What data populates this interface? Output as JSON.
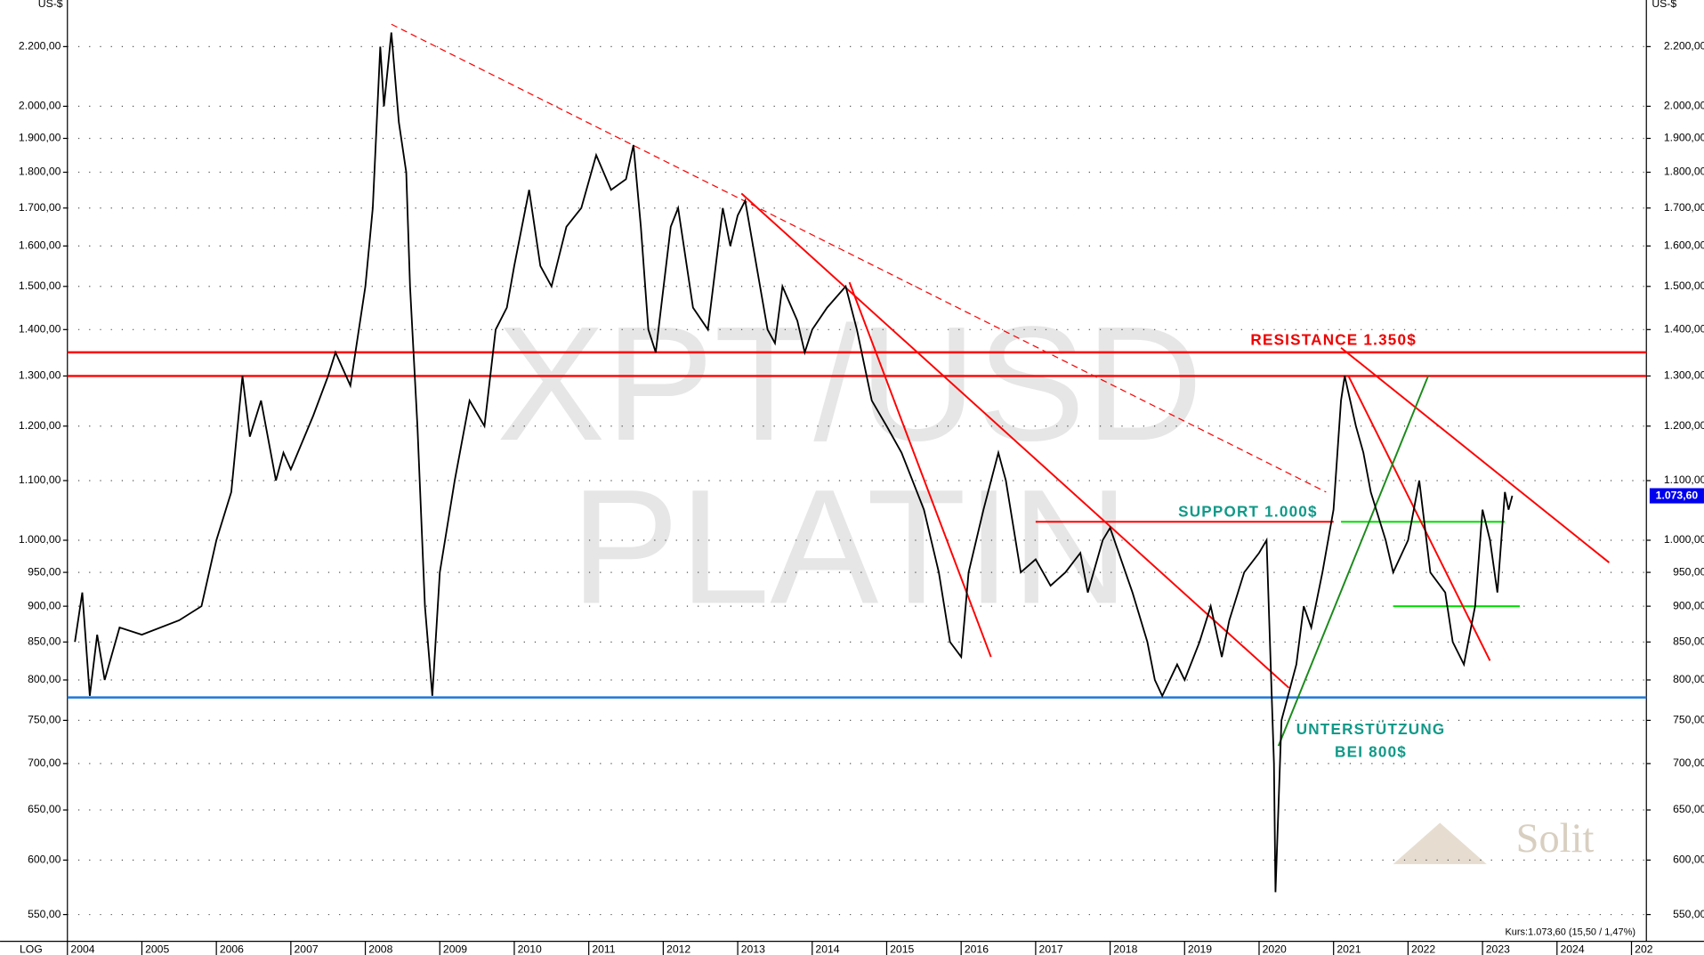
{
  "chart_data": {
    "type": "line",
    "log_scale": true,
    "grid": true,
    "axis_label_left": "US-$",
    "axis_label_right": "US-$",
    "scale_label": "LOG",
    "watermark": [
      "XPT/USD",
      "PLATIN"
    ],
    "brand": "Solit",
    "quote": "Kurs:1.073,60 (15,50 / 1,47%)",
    "price_marker": {
      "value": 1073.6,
      "label": "1.073,60",
      "color": "#0000ee"
    },
    "xlim": [
      2004,
      2025.2
    ],
    "ylim": [
      527,
      2370
    ],
    "xticks": [
      2004,
      2005,
      2006,
      2007,
      2008,
      2009,
      2010,
      2011,
      2012,
      2013,
      2014,
      2015,
      2016,
      2017,
      2018,
      2019,
      2020,
      2021,
      2022,
      2023,
      2024,
      {
        "value": 2025,
        "label": "202"
      }
    ],
    "yticks": [
      {
        "value": 550,
        "label": "550,00"
      },
      {
        "value": 600,
        "label": "600,00"
      },
      {
        "value": 650,
        "label": "650,00"
      },
      {
        "value": 700,
        "label": "700,00"
      },
      {
        "value": 750,
        "label": "750,00"
      },
      {
        "value": 800,
        "label": "800,00"
      },
      {
        "value": 850,
        "label": "850,00"
      },
      {
        "value": 900,
        "label": "900,00"
      },
      {
        "value": 950,
        "label": "950,00"
      },
      {
        "value": 1000,
        "label": "1.000,00"
      },
      {
        "value": 1100,
        "label": "1.100,00"
      },
      {
        "value": 1200,
        "label": "1.200,00"
      },
      {
        "value": 1300,
        "label": "1.300,00"
      },
      {
        "value": 1400,
        "label": "1.400,00"
      },
      {
        "value": 1500,
        "label": "1.500,00"
      },
      {
        "value": 1600,
        "label": "1.600,00"
      },
      {
        "value": 1700,
        "label": "1.700,00"
      },
      {
        "value": 1800,
        "label": "1.800,00"
      },
      {
        "value": 1900,
        "label": "1.900,00"
      },
      {
        "value": 2000,
        "label": "2.000,00"
      },
      {
        "value": 2200,
        "label": "2.200,00"
      }
    ],
    "series": [
      {
        "name": "XPT/USD",
        "color": "#000000",
        "x": [
          2004.1,
          2004.2,
          2004.3,
          2004.4,
          2004.5,
          2004.7,
          2005.0,
          2005.5,
          2005.8,
          2006.0,
          2006.2,
          2006.35,
          2006.45,
          2006.6,
          2006.8,
          2006.9,
          2007.0,
          2007.3,
          2007.5,
          2007.6,
          2007.8,
          2008.0,
          2008.1,
          2008.2,
          2008.25,
          2008.35,
          2008.45,
          2008.55,
          2008.6,
          2008.7,
          2008.8,
          2008.9,
          2009.0,
          2009.2,
          2009.4,
          2009.6,
          2009.75,
          2009.9,
          2010.0,
          2010.2,
          2010.35,
          2010.5,
          2010.7,
          2010.9,
          2011.1,
          2011.3,
          2011.5,
          2011.6,
          2011.7,
          2011.8,
          2011.9,
          2012.1,
          2012.2,
          2012.4,
          2012.6,
          2012.8,
          2012.9,
          2013.0,
          2013.1,
          2013.3,
          2013.4,
          2013.5,
          2013.6,
          2013.8,
          2013.9,
          2014.0,
          2014.2,
          2014.45,
          2014.6,
          2014.8,
          2015.0,
          2015.2,
          2015.5,
          2015.7,
          2015.85,
          2016.0,
          2016.1,
          2016.3,
          2016.5,
          2016.6,
          2016.8,
          2017.0,
          2017.2,
          2017.4,
          2017.6,
          2017.7,
          2017.9,
          2018.0,
          2018.3,
          2018.5,
          2018.6,
          2018.7,
          2018.9,
          2019.0,
          2019.2,
          2019.35,
          2019.5,
          2019.6,
          2019.8,
          2020.0,
          2020.1,
          2020.2,
          2020.22,
          2020.3,
          2020.5,
          2020.6,
          2020.7,
          2020.85,
          2021.0,
          2021.1,
          2021.15,
          2021.3,
          2021.4,
          2021.5,
          2021.7,
          2021.8,
          2022.0,
          2022.15,
          2022.3,
          2022.5,
          2022.6,
          2022.75,
          2022.9,
          2023.0,
          2023.1,
          2023.2,
          2023.3,
          2023.35,
          2023.4
        ],
        "values": [
          850,
          920,
          780,
          860,
          800,
          870,
          860,
          880,
          900,
          1000,
          1080,
          1300,
          1180,
          1250,
          1100,
          1150,
          1120,
          1220,
          1300,
          1350,
          1280,
          1500,
          1700,
          2200,
          2000,
          2250,
          1950,
          1800,
          1500,
          1200,
          900,
          780,
          950,
          1100,
          1250,
          1200,
          1400,
          1450,
          1550,
          1750,
          1550,
          1500,
          1650,
          1700,
          1850,
          1750,
          1780,
          1880,
          1650,
          1400,
          1350,
          1650,
          1700,
          1450,
          1400,
          1700,
          1600,
          1680,
          1720,
          1500,
          1400,
          1370,
          1500,
          1420,
          1350,
          1400,
          1450,
          1500,
          1400,
          1250,
          1200,
          1150,
          1050,
          950,
          850,
          830,
          950,
          1050,
          1150,
          1100,
          950,
          970,
          930,
          950,
          980,
          920,
          1000,
          1020,
          920,
          850,
          800,
          780,
          820,
          800,
          850,
          900,
          830,
          880,
          950,
          980,
          1000,
          700,
          570,
          750,
          820,
          900,
          870,
          950,
          1050,
          1250,
          1300,
          1200,
          1150,
          1080,
          1000,
          950,
          1000,
          1100,
          950,
          920,
          850,
          820,
          900,
          1050,
          1000,
          920,
          1080,
          1050,
          1073.6
        ]
      }
    ],
    "levels": [
      {
        "value": 1350,
        "color": "#ff0000"
      },
      {
        "value": 1300,
        "color": "#ff0000"
      },
      {
        "value": 778,
        "color": "#1e78d8"
      }
    ],
    "segments": [
      {
        "x": [
          2017.0,
          2021.0
        ],
        "values": [
          1030,
          1030
        ],
        "color": "#ff0000",
        "dashed": false
      },
      {
        "x": [
          2021.1,
          2023.3
        ],
        "values": [
          1030,
          1030
        ],
        "color": "#00dd00",
        "dashed": false
      },
      {
        "x": [
          2021.8,
          2023.5
        ],
        "values": [
          900,
          900
        ],
        "color": "#00dd00",
        "dashed": false
      },
      {
        "x": [
          2008.35,
          2020.9
        ],
        "values": [
          2280,
          1080
        ],
        "color": "#ff0000",
        "dashed": true
      },
      {
        "x": [
          2013.05,
          2020.4
        ],
        "values": [
          1740,
          790
        ],
        "color": "#ff0000",
        "dashed": false
      },
      {
        "x": [
          2014.5,
          2016.4
        ],
        "values": [
          1510,
          830
        ],
        "color": "#ff0000",
        "dashed": false
      },
      {
        "x": [
          2021.1,
          2024.7
        ],
        "values": [
          1360,
          965
        ],
        "color": "#ff0000",
        "dashed": false
      },
      {
        "x": [
          2021.2,
          2023.1
        ],
        "values": [
          1300,
          825
        ],
        "color": "#ff0000",
        "dashed": false
      },
      {
        "x": [
          2020.26,
          2022.27
        ],
        "values": [
          720,
          1300
        ],
        "color": "#1a8a1a",
        "dashed": false
      }
    ],
    "annotations": [
      {
        "text": "RESISTANCE 1.350$",
        "x": 2021.0,
        "y": 1375,
        "color": "#ee0000"
      },
      {
        "text": "SUPPORT 1.000$",
        "x": 2019.85,
        "y": 1045,
        "color": "#119988"
      },
      {
        "text": "UNTERSTÜTZUNG",
        "x": 2021.5,
        "y": 738,
        "color": "#119988"
      },
      {
        "text": "BEI 800$",
        "x": 2021.5,
        "y": 712,
        "color": "#119988"
      }
    ]
  }
}
